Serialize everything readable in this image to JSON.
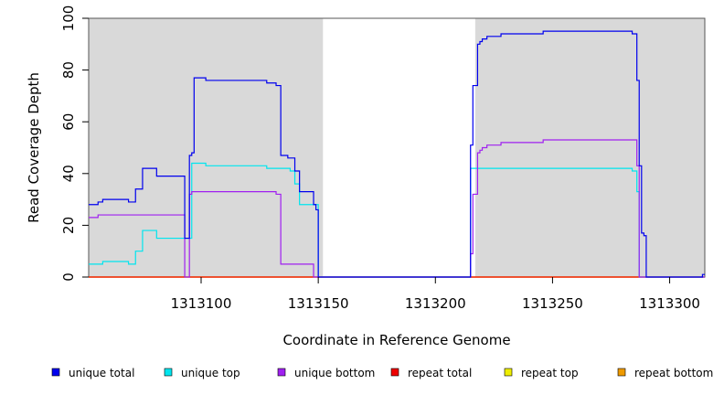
{
  "chart_data": {
    "type": "line",
    "step": true,
    "xlabel": "Coordinate in Reference Genome",
    "ylabel": "Read Coverage Depth",
    "xlim": [
      1313052,
      1313315
    ],
    "ylim": [
      0,
      100
    ],
    "x_ticks": [
      1313100,
      1313150,
      1313200,
      1313250,
      1313300
    ],
    "y_ticks": [
      0,
      20,
      40,
      60,
      80,
      100
    ],
    "x_tick_labels": [
      "1313100",
      "1313150",
      "1313200",
      "1313250",
      "1313300"
    ],
    "y_tick_labels": [
      "0",
      "20",
      "40",
      "60",
      "80",
      "100"
    ],
    "shaded_regions": [
      [
        1313052,
        1313152
      ],
      [
        1313217,
        1313315
      ]
    ],
    "shade_color": "#d9d9d9",
    "series": [
      {
        "name": "unique total",
        "color": "#0000ee",
        "points": [
          [
            1313052,
            28
          ],
          [
            1313056,
            28
          ],
          [
            1313056,
            29
          ],
          [
            1313058,
            29
          ],
          [
            1313058,
            30
          ],
          [
            1313069,
            30
          ],
          [
            1313069,
            29
          ],
          [
            1313072,
            29
          ],
          [
            1313072,
            34
          ],
          [
            1313075,
            34
          ],
          [
            1313075,
            42
          ],
          [
            1313081,
            42
          ],
          [
            1313081,
            39
          ],
          [
            1313093,
            39
          ],
          [
            1313093,
            15
          ],
          [
            1313095,
            15
          ],
          [
            1313095,
            47
          ],
          [
            1313096,
            47
          ],
          [
            1313096,
            48
          ],
          [
            1313097,
            48
          ],
          [
            1313097,
            77
          ],
          [
            1313102,
            77
          ],
          [
            1313102,
            76
          ],
          [
            1313128,
            76
          ],
          [
            1313128,
            75
          ],
          [
            1313132,
            75
          ],
          [
            1313132,
            74
          ],
          [
            1313134,
            74
          ],
          [
            1313134,
            47
          ],
          [
            1313137,
            47
          ],
          [
            1313137,
            46
          ],
          [
            1313140,
            46
          ],
          [
            1313140,
            41
          ],
          [
            1313142,
            41
          ],
          [
            1313142,
            33
          ],
          [
            1313148,
            33
          ],
          [
            1313148,
            28
          ],
          [
            1313149,
            28
          ],
          [
            1313149,
            26
          ],
          [
            1313150,
            26
          ],
          [
            1313150,
            0
          ],
          [
            1313215,
            0
          ],
          [
            1313215,
            51
          ],
          [
            1313216,
            51
          ],
          [
            1313216,
            74
          ],
          [
            1313218,
            74
          ],
          [
            1313218,
            90
          ],
          [
            1313219,
            90
          ],
          [
            1313219,
            91
          ],
          [
            1313220,
            91
          ],
          [
            1313220,
            92
          ],
          [
            1313222,
            92
          ],
          [
            1313222,
            93
          ],
          [
            1313228,
            93
          ],
          [
            1313228,
            94
          ],
          [
            1313246,
            94
          ],
          [
            1313246,
            95
          ],
          [
            1313284,
            95
          ],
          [
            1313284,
            94
          ],
          [
            1313286,
            94
          ],
          [
            1313286,
            76
          ],
          [
            1313287,
            76
          ],
          [
            1313287,
            43
          ],
          [
            1313288,
            43
          ],
          [
            1313288,
            17
          ],
          [
            1313289,
            17
          ],
          [
            1313289,
            16
          ],
          [
            1313290,
            16
          ],
          [
            1313290,
            0
          ],
          [
            1313314,
            0
          ],
          [
            1313314,
            1
          ],
          [
            1313315,
            1
          ]
        ]
      },
      {
        "name": "unique top",
        "color": "#00e5ee",
        "points": [
          [
            1313052,
            5
          ],
          [
            1313058,
            5
          ],
          [
            1313058,
            6
          ],
          [
            1313069,
            6
          ],
          [
            1313069,
            5
          ],
          [
            1313072,
            5
          ],
          [
            1313072,
            10
          ],
          [
            1313075,
            10
          ],
          [
            1313075,
            18
          ],
          [
            1313081,
            18
          ],
          [
            1313081,
            15
          ],
          [
            1313096,
            15
          ],
          [
            1313096,
            44
          ],
          [
            1313102,
            44
          ],
          [
            1313102,
            43
          ],
          [
            1313128,
            43
          ],
          [
            1313128,
            42
          ],
          [
            1313138,
            42
          ],
          [
            1313138,
            41
          ],
          [
            1313140,
            41
          ],
          [
            1313140,
            36
          ],
          [
            1313142,
            36
          ],
          [
            1313142,
            28
          ],
          [
            1313150,
            28
          ],
          [
            1313150,
            0
          ],
          [
            1313215,
            0
          ],
          [
            1313215,
            42
          ],
          [
            1313284,
            42
          ],
          [
            1313284,
            41
          ],
          [
            1313286,
            41
          ],
          [
            1313286,
            33
          ],
          [
            1313287,
            33
          ],
          [
            1313287,
            0
          ],
          [
            1313315,
            0
          ]
        ]
      },
      {
        "name": "unique bottom",
        "color": "#a020f0",
        "points": [
          [
            1313052,
            23
          ],
          [
            1313056,
            23
          ],
          [
            1313056,
            24
          ],
          [
            1313093,
            24
          ],
          [
            1313093,
            0
          ],
          [
            1313095,
            0
          ],
          [
            1313095,
            32
          ],
          [
            1313096,
            32
          ],
          [
            1313096,
            33
          ],
          [
            1313132,
            33
          ],
          [
            1313132,
            32
          ],
          [
            1313134,
            32
          ],
          [
            1313134,
            5
          ],
          [
            1313148,
            5
          ],
          [
            1313148,
            0
          ],
          [
            1313215,
            0
          ],
          [
            1313215,
            9
          ],
          [
            1313216,
            9
          ],
          [
            1313216,
            32
          ],
          [
            1313218,
            32
          ],
          [
            1313218,
            48
          ],
          [
            1313219,
            48
          ],
          [
            1313219,
            49
          ],
          [
            1313220,
            49
          ],
          [
            1313220,
            50
          ],
          [
            1313222,
            50
          ],
          [
            1313222,
            51
          ],
          [
            1313228,
            51
          ],
          [
            1313228,
            52
          ],
          [
            1313246,
            52
          ],
          [
            1313246,
            53
          ],
          [
            1313286,
            53
          ],
          [
            1313286,
            43
          ],
          [
            1313287,
            43
          ],
          [
            1313287,
            0
          ],
          [
            1313315,
            0
          ]
        ]
      },
      {
        "name": "repeat total",
        "color": "#ee0000",
        "points": [
          [
            1313052,
            0
          ],
          [
            1313315,
            0
          ]
        ]
      },
      {
        "name": "repeat top",
        "color": "#eeee00",
        "points": [
          [
            1313052,
            0
          ],
          [
            1313315,
            0
          ]
        ]
      },
      {
        "name": "repeat bottom",
        "color": "#ee9a00",
        "points": [
          [
            1313052,
            0
          ],
          [
            1313315,
            0
          ]
        ]
      }
    ],
    "legend_position": "bottom"
  }
}
